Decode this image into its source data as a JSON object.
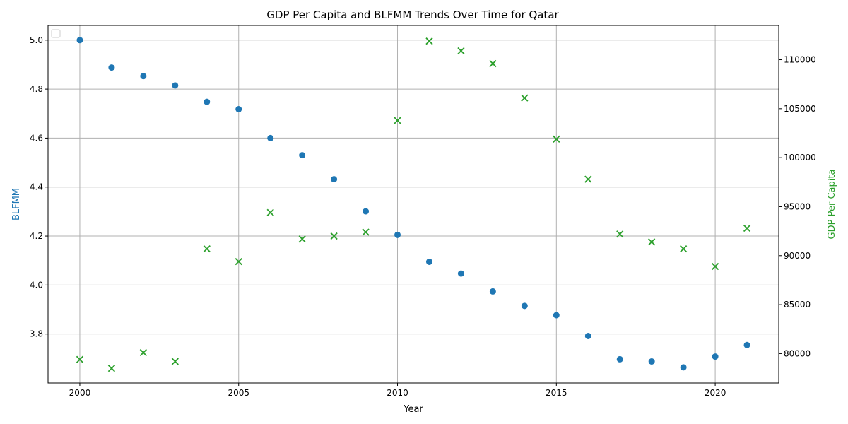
{
  "chart_data": {
    "type": "scatter",
    "title": "GDP Per Capita and BLFMM Trends Over Time for Qatar",
    "xlabel": "Year",
    "ylabel_left": "BLFMM",
    "ylabel_right": "GDP Per Capita",
    "xlim": [
      1999,
      2022
    ],
    "ylim_left": [
      3.6,
      5.06
    ],
    "ylim_right": [
      77000,
      113500
    ],
    "x_ticks": [
      "2000",
      "2005",
      "2010",
      "2015",
      "2020"
    ],
    "y_left_ticks": [
      "3.8",
      "4.0",
      "4.2",
      "4.4",
      "4.6",
      "4.8",
      "5.0"
    ],
    "y_right_ticks": [
      "80000",
      "85000",
      "90000",
      "95000",
      "100000",
      "105000",
      "110000"
    ],
    "grid": true,
    "legend": {
      "position": "top-left",
      "entries": []
    },
    "colors": {
      "blfmm": "#1f77b4",
      "gdp": "#2ca02c"
    },
    "series": [
      {
        "axis": "left",
        "marker": "circle",
        "x": [
          2000,
          2001,
          2002,
          2003,
          2004,
          2005,
          2006,
          2007,
          2008,
          2009,
          2010,
          2011,
          2012,
          2013,
          2014,
          2015,
          2016,
          2017,
          2018,
          2019,
          2020,
          2021
        ],
        "values": [
          5.0,
          4.888,
          4.853,
          4.815,
          4.748,
          4.718,
          4.6,
          4.53,
          4.432,
          4.301,
          4.205,
          4.095,
          4.047,
          3.974,
          3.915,
          3.877,
          3.792,
          3.697,
          3.688,
          3.664,
          3.708,
          3.755
        ]
      },
      {
        "axis": "right",
        "marker": "x",
        "x": [
          2000,
          2001,
          2002,
          2003,
          2004,
          2005,
          2006,
          2007,
          2008,
          2009,
          2010,
          2011,
          2012,
          2013,
          2014,
          2015,
          2016,
          2017,
          2018,
          2019,
          2020,
          2021
        ],
        "values": [
          79400,
          78500,
          80100,
          79200,
          90700,
          89400,
          94400,
          91700,
          92000,
          92400,
          103800,
          111900,
          110900,
          109600,
          106100,
          101900,
          97800,
          92200,
          91400,
          90700,
          88900,
          92800
        ]
      }
    ]
  }
}
